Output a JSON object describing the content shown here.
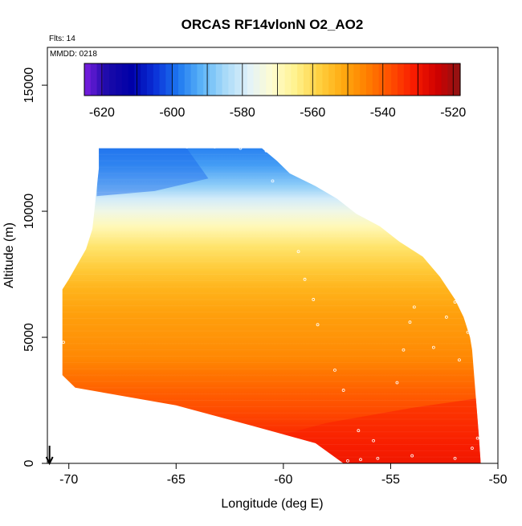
{
  "chart_data": {
    "type": "heatmap",
    "title": "ORCAS RF14vlonN O2_AO2",
    "top_left_label": "Flts: 14",
    "annotation": "MMDD: 0218",
    "xlabel": "Longitude (deg E)",
    "ylabel": "Altitude (m)",
    "xlim": [
      -71,
      -50
    ],
    "ylim": [
      0,
      16500
    ],
    "x_ticks": [
      -70,
      -65,
      -60,
      -55,
      -50
    ],
    "x_tick_labels": [
      "-70",
      "-65",
      "-60",
      "-55",
      "-50"
    ],
    "y_ticks": [
      0,
      5000,
      10000,
      15000
    ],
    "y_tick_labels": [
      "0",
      "5000",
      "10000",
      "15000"
    ],
    "colorbar": {
      "min": -625,
      "max": -518,
      "ticks": [
        -620,
        -600,
        -580,
        -560,
        -540,
        -520
      ],
      "tick_labels": [
        "-620",
        "-600",
        "-580",
        "-560",
        "-540",
        "-520"
      ],
      "lines": [
        -620,
        -610,
        -600,
        -590,
        -580,
        -570,
        -560,
        -550,
        -540,
        -530,
        -520
      ],
      "colors": [
        "#7b1fe0",
        "#1a0aa8",
        "#0000a8",
        "#0a30d8",
        "#1e78f0",
        "#5cb4f8",
        "#a8daf8",
        "#e2f2fa",
        "#fffcd0",
        "#fff28c",
        "#ffd040",
        "#ffaa10",
        "#ff8000",
        "#ff5000",
        "#f81c00",
        "#d00000",
        "#8e1414"
      ]
    },
    "domain_outline": {
      "lon": [
        -68.4,
        -61.0,
        -60.3,
        -59.7,
        -58.5,
        -57.5,
        -56.6,
        -55.5,
        -54.6,
        -53.5,
        -52.7,
        -52.0,
        -51.6,
        -51.3,
        -51.2,
        -50.9,
        -50.8,
        -57.2,
        -58.5,
        -61.5,
        -65.0,
        -69.7,
        -70.3,
        -70.3,
        -70.0,
        -69.6,
        -69.2,
        -68.9,
        -68.8,
        -68.7,
        -68.6,
        -68.6
      ],
      "alt": [
        12500,
        12500,
        12000,
        11500,
        11000,
        10500,
        9900,
        9400,
        8800,
        8200,
        7400,
        6500,
        5800,
        5000,
        4500,
        1200,
        0,
        0,
        800,
        1500,
        2300,
        3000,
        3500,
        6900,
        7300,
        7900,
        8500,
        9300,
        10100,
        10900,
        11700,
        12500
      ]
    },
    "field_layers": [
      {
        "alt": 12500,
        "value": -597
      },
      {
        "alt": 11800,
        "value": -594
      },
      {
        "alt": 11000,
        "value": -587
      },
      {
        "alt": 10500,
        "value": -580
      },
      {
        "alt": 10000,
        "value": -575
      },
      {
        "alt": 9400,
        "value": -569
      },
      {
        "alt": 8600,
        "value": -562
      },
      {
        "alt": 7700,
        "value": -557
      },
      {
        "alt": 6900,
        "value": -553
      },
      {
        "alt": 6000,
        "value": -550
      },
      {
        "alt": 5000,
        "value": -548
      },
      {
        "alt": 4200,
        "value": -546
      },
      {
        "alt": 3500,
        "value": -543
      },
      {
        "alt": 2800,
        "value": -540
      },
      {
        "alt": 2000,
        "value": -537
      },
      {
        "alt": 1300,
        "value": -534
      },
      {
        "alt": 700,
        "value": -531
      },
      {
        "alt": 0,
        "value": -528
      }
    ],
    "flight_track": {
      "lon": [
        -68.5,
        -67.4,
        -66.0,
        -64.5,
        -63.2,
        -62.0,
        -60.8,
        -60.5,
        -59.3,
        -59.0,
        -58.6,
        -58.4,
        -57.6,
        -57.2,
        -56.5,
        -55.8,
        -54.7,
        -54.4,
        -54.1,
        -53.9,
        -53.0,
        -52.4,
        -52.0,
        -51.8,
        -51.4,
        -51.1,
        -50.9,
        -50.95,
        -51.2,
        -52.0,
        -54.0,
        -55.6,
        -56.4,
        -57.0,
        -57.6
      ],
      "alt": [
        12600,
        12600,
        12600,
        12550,
        12550,
        12500,
        12400,
        11200,
        8400,
        7300,
        6500,
        5500,
        3700,
        2900,
        1300,
        900,
        3200,
        4500,
        5600,
        6200,
        4600,
        5800,
        6400,
        4100,
        5200,
        4400,
        2800,
        1000,
        600,
        200,
        300,
        200,
        150,
        100,
        80
      ]
    },
    "edge_points": {
      "lon": [
        -70.25
      ],
      "alt": [
        4800
      ]
    },
    "arrow": {
      "lon": -70.9,
      "alt_from": 700,
      "alt_to": 0
    }
  }
}
